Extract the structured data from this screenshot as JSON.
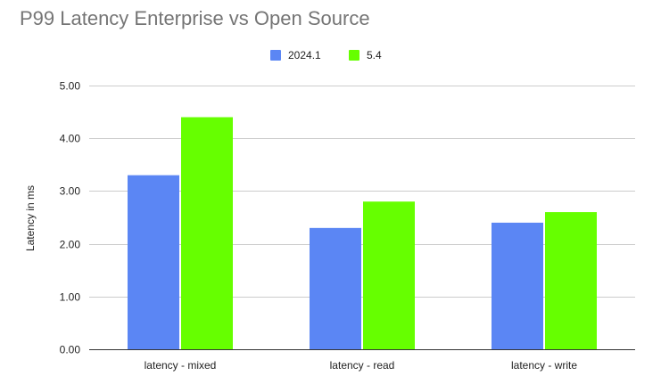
{
  "chart_data": {
    "type": "bar",
    "title": "P99 Latency Enterprise vs Open Source",
    "ylabel": "Latency in ms",
    "xlabel": "",
    "categories": [
      "latency - mixed",
      "latency - read",
      "latency - write"
    ],
    "series": [
      {
        "name": "2024.1",
        "color": "#5b86f4",
        "values": [
          3.3,
          2.3,
          2.4
        ]
      },
      {
        "name": "5.4",
        "color": "#66ff00",
        "values": [
          4.4,
          2.8,
          2.6
        ]
      }
    ],
    "ylim": [
      0,
      5
    ],
    "yticks": [
      "0.00",
      "1.00",
      "2.00",
      "3.00",
      "4.00",
      "5.00"
    ],
    "legend_position": "top",
    "grid": true,
    "grid_color": "#cccccc"
  }
}
